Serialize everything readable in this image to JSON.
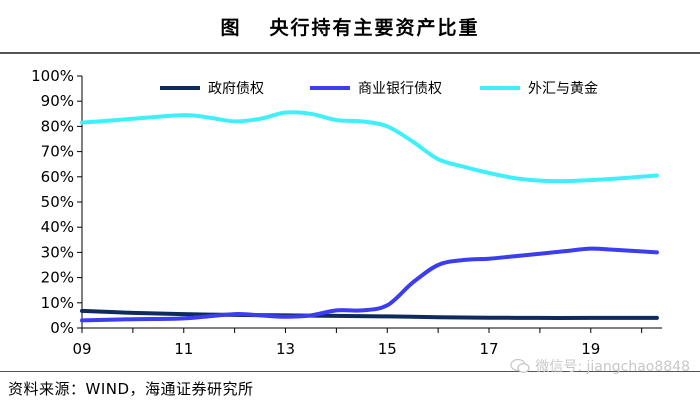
{
  "header": {
    "figure_label": "图",
    "title": "央行持有主要资产比重"
  },
  "source": {
    "text": "资料来源：WIND，海通证券研究所"
  },
  "watermark": {
    "text": "微信号: jiangchao8848",
    "icon": "wechat-icon"
  },
  "chart_data": {
    "type": "line",
    "x_ticks": [
      "09",
      "11",
      "13",
      "15",
      "17",
      "19"
    ],
    "x_range": [
      2009,
      2020.4
    ],
    "ylim": [
      0,
      100
    ],
    "y_ticks": [
      "0%",
      "10%",
      "20%",
      "30%",
      "40%",
      "50%",
      "60%",
      "70%",
      "80%",
      "90%",
      "100%"
    ],
    "legend_position": "top",
    "grid": false,
    "series": [
      {
        "name": "政府债权",
        "color": "#0f2a5c",
        "points": [
          [
            2009,
            6.8
          ],
          [
            2010,
            6.0
          ],
          [
            2011,
            5.5
          ],
          [
            2012,
            5.2
          ],
          [
            2013,
            5.0
          ],
          [
            2014,
            4.8
          ],
          [
            2015,
            4.6
          ],
          [
            2016,
            4.3
          ],
          [
            2017,
            4.1
          ],
          [
            2018,
            4.0
          ],
          [
            2019,
            4.0
          ],
          [
            2020.3,
            4.0
          ]
        ]
      },
      {
        "name": "商业银行债权",
        "color": "#3c3cf0",
        "points": [
          [
            2009,
            3.0
          ],
          [
            2010,
            3.5
          ],
          [
            2011,
            3.8
          ],
          [
            2012,
            5.5
          ],
          [
            2012.5,
            5.0
          ],
          [
            2013,
            4.5
          ],
          [
            2013.5,
            5.0
          ],
          [
            2014,
            7.0
          ],
          [
            2014.5,
            7.0
          ],
          [
            2015,
            9.0
          ],
          [
            2015.5,
            18.0
          ],
          [
            2016,
            25.0
          ],
          [
            2016.5,
            27.0
          ],
          [
            2017,
            27.5
          ],
          [
            2017.5,
            28.5
          ],
          [
            2018,
            29.5
          ],
          [
            2018.5,
            30.5
          ],
          [
            2019,
            31.5
          ],
          [
            2019.5,
            31.0
          ],
          [
            2020.3,
            30.0
          ]
        ]
      },
      {
        "name": "外汇与黄金",
        "color": "#3ff0fa",
        "points": [
          [
            2009,
            81.5
          ],
          [
            2010,
            83.0
          ],
          [
            2011,
            84.5
          ],
          [
            2011.5,
            83.5
          ],
          [
            2012,
            82.0
          ],
          [
            2012.5,
            83.0
          ],
          [
            2013,
            85.5
          ],
          [
            2013.5,
            85.0
          ],
          [
            2014,
            82.5
          ],
          [
            2014.5,
            82.0
          ],
          [
            2015,
            80.0
          ],
          [
            2015.5,
            74.0
          ],
          [
            2016,
            67.0
          ],
          [
            2016.5,
            64.0
          ],
          [
            2017,
            61.5
          ],
          [
            2017.5,
            59.5
          ],
          [
            2018,
            58.5
          ],
          [
            2018.5,
            58.3
          ],
          [
            2019,
            58.7
          ],
          [
            2019.5,
            59.3
          ],
          [
            2020.3,
            60.5
          ]
        ]
      }
    ]
  }
}
